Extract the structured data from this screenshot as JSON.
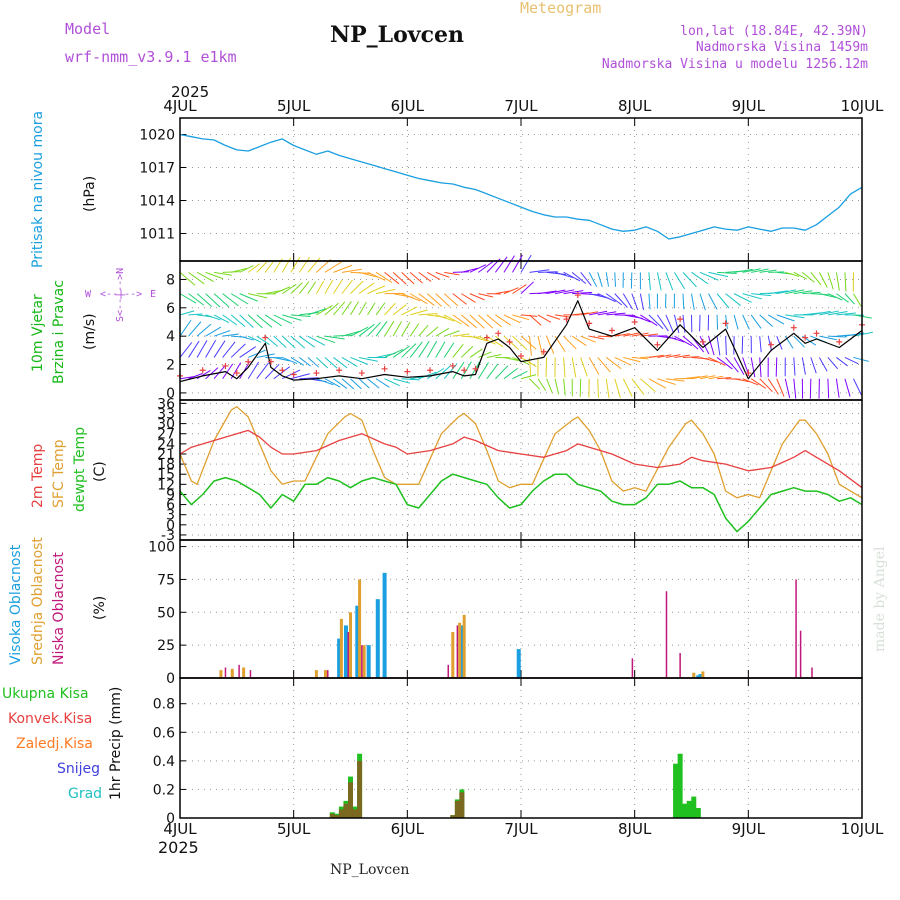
{
  "header": {
    "model_label": "Model",
    "model_name": "wrf-nmm_v3.9.1 e1km",
    "title": "NP_Lovcen",
    "product": "Meteogram",
    "coords": "lon,lat (18.84E, 42.39N)",
    "altitude": "Nadmorska Visina 1459m",
    "model_altitude": "Nadmorska Visina u modelu 1256.12m"
  },
  "footer": {
    "station": "NP_Lovcen",
    "credit": "made by Angel"
  },
  "colors": {
    "pressure": "#1a9fe0",
    "wind_label": "#17b817",
    "temp2m": "#e84040",
    "sfc": "#e0a030",
    "dew": "#20c020",
    "cloud_high": "#1a9fe0",
    "cloud_mid": "#e0a030",
    "cloud_low": "#c0187a",
    "precip_total": "#20c020",
    "precip_conv": "#e84040",
    "precip_strat": "#ff7a20",
    "precip_snow": "#4040e0",
    "precip_hail": "#20c0c0",
    "violet": "#b050d8"
  },
  "time_axis": {
    "year": "2025",
    "day_labels": [
      "4JUL",
      "5JUL",
      "6JUL",
      "7JUL",
      "8JUL",
      "9JUL",
      "10JUL"
    ]
  },
  "wind_legend": {
    "n": "N",
    "s": "S",
    "w": "W",
    "e": "E",
    "arrow": "<--|-->"
  },
  "chart_data": [
    {
      "type": "line",
      "name": "pressure",
      "labels": [
        "Pritisak na nivou mora",
        "(hPa)"
      ],
      "ylim": [
        1008.5,
        1021.5
      ],
      "yticks": [
        "1011",
        "1014",
        "1017",
        "1020"
      ],
      "ytick_values": [
        1011,
        1014,
        1017,
        1020
      ],
      "series": [
        {
          "x": [
            0.0,
            0.1,
            0.2,
            0.3,
            0.4,
            0.5,
            0.6,
            0.7,
            0.8,
            0.9,
            1.0,
            1.1,
            1.2,
            1.3,
            1.4,
            1.5,
            1.6,
            1.7,
            1.8,
            1.9,
            2.0,
            2.1,
            2.2,
            2.3,
            2.4,
            2.5,
            2.6,
            2.7,
            2.8,
            2.9,
            3.0,
            3.1,
            3.2,
            3.3,
            3.4,
            3.5,
            3.6,
            3.7,
            3.8,
            3.9,
            4.0,
            4.1,
            4.2,
            4.3,
            4.4,
            4.5,
            4.6,
            4.7,
            4.8,
            4.9,
            5.0,
            5.1,
            5.2,
            5.3,
            5.4,
            5.5,
            5.6,
            5.7,
            5.8,
            5.9,
            6.0
          ],
          "y": [
            1020.0,
            1019.8,
            1019.6,
            1019.5,
            1019.0,
            1018.6,
            1018.5,
            1018.9,
            1019.3,
            1019.6,
            1019.0,
            1018.6,
            1018.2,
            1018.5,
            1018.1,
            1017.8,
            1017.5,
            1017.2,
            1016.9,
            1016.6,
            1016.3,
            1016.0,
            1015.8,
            1015.6,
            1015.5,
            1015.2,
            1015.0,
            1014.6,
            1014.2,
            1013.8,
            1013.4,
            1013.0,
            1012.7,
            1012.5,
            1012.5,
            1012.3,
            1012.2,
            1011.8,
            1011.4,
            1011.2,
            1011.3,
            1011.6,
            1011.2,
            1010.5,
            1010.7,
            1011.0,
            1011.3,
            1011.6,
            1011.4,
            1011.3,
            1011.6,
            1011.4,
            1011.2,
            1011.5,
            1011.5,
            1011.3,
            1011.8,
            1012.6,
            1013.4,
            1014.6,
            1015.2
          ]
        }
      ]
    },
    {
      "type": "line",
      "name": "wind",
      "labels": [
        "10m Vjetar",
        "Brzina i Pravac",
        "(m/s)"
      ],
      "ylim": [
        -0.5,
        9.3
      ],
      "yticks": [
        "0",
        "2",
        "4",
        "6",
        "8"
      ],
      "ytick_values": [
        0,
        2,
        4,
        6,
        8
      ],
      "series": [
        {
          "name": "speed",
          "x": [
            0.0,
            0.2,
            0.4,
            0.5,
            0.6,
            0.75,
            0.8,
            0.9,
            1.0,
            1.2,
            1.4,
            1.6,
            1.8,
            2.0,
            2.2,
            2.4,
            2.5,
            2.6,
            2.7,
            2.8,
            2.9,
            3.0,
            3.2,
            3.4,
            3.5,
            3.6,
            3.8,
            4.0,
            4.2,
            4.4,
            4.6,
            4.8,
            5.0,
            5.2,
            5.4,
            5.5,
            5.6,
            5.8,
            6.0
          ],
          "y": [
            0.8,
            1.2,
            1.5,
            1.0,
            1.8,
            3.5,
            1.8,
            1.2,
            0.9,
            1.0,
            1.2,
            1.0,
            1.3,
            1.1,
            1.2,
            1.5,
            1.2,
            1.3,
            3.5,
            3.8,
            3.2,
            2.2,
            2.5,
            4.8,
            6.5,
            4.5,
            4.0,
            4.6,
            3.0,
            4.8,
            3.2,
            4.5,
            1.0,
            3.0,
            4.2,
            3.5,
            3.8,
            3.2,
            4.4
          ]
        }
      ]
    },
    {
      "type": "line",
      "name": "temperature",
      "labels": [
        "2m Temp",
        "SFC Temp",
        "dewpt Temp",
        "(C)"
      ],
      "ylim": [
        -4.5,
        37
      ],
      "yticks": [
        "-3",
        "0",
        "3",
        "6",
        "9",
        "12",
        "15",
        "18",
        "21",
        "24",
        "27",
        "30",
        "33",
        "36"
      ],
      "ytick_values": [
        -3,
        0,
        3,
        6,
        9,
        12,
        15,
        18,
        21,
        24,
        27,
        30,
        33,
        36
      ],
      "series": [
        {
          "name": "2m",
          "x": [
            0.0,
            0.1,
            0.3,
            0.5,
            0.6,
            0.7,
            0.8,
            0.9,
            1.0,
            1.2,
            1.4,
            1.5,
            1.6,
            1.8,
            1.9,
            2.0,
            2.2,
            2.4,
            2.5,
            2.6,
            2.8,
            3.0,
            3.2,
            3.4,
            3.5,
            3.6,
            3.8,
            4.0,
            4.2,
            4.4,
            4.5,
            4.6,
            4.8,
            5.0,
            5.2,
            5.4,
            5.5,
            5.6,
            5.8,
            6.0
          ],
          "y": [
            21,
            23,
            25,
            27,
            28,
            26,
            23,
            21,
            21,
            22,
            25,
            26,
            27,
            24,
            23,
            21,
            22,
            24,
            26,
            25,
            22,
            21,
            20,
            22,
            24,
            23,
            21,
            18,
            17,
            18,
            20,
            19,
            18,
            16,
            17,
            20,
            22,
            20,
            16,
            11
          ]
        },
        {
          "name": "sfc",
          "x": [
            0.0,
            0.1,
            0.15,
            0.3,
            0.45,
            0.5,
            0.6,
            0.7,
            0.8,
            0.9,
            1.0,
            1.1,
            1.3,
            1.45,
            1.5,
            1.6,
            1.7,
            1.8,
            1.9,
            2.0,
            2.1,
            2.3,
            2.45,
            2.5,
            2.6,
            2.7,
            2.8,
            2.9,
            3.0,
            3.1,
            3.3,
            3.45,
            3.5,
            3.6,
            3.7,
            3.8,
            3.9,
            4.0,
            4.1,
            4.3,
            4.45,
            4.5,
            4.6,
            4.7,
            4.8,
            4.9,
            5.0,
            5.1,
            5.3,
            5.45,
            5.5,
            5.6,
            5.7,
            5.8,
            5.9,
            6.0
          ],
          "y": [
            21,
            13,
            12,
            25,
            34,
            35,
            32,
            24,
            16,
            12,
            13,
            13,
            27,
            32,
            33,
            31,
            22,
            14,
            12,
            12,
            12,
            27,
            32,
            33,
            30,
            22,
            13,
            11,
            12,
            12,
            27,
            31,
            32,
            28,
            22,
            13,
            10,
            11,
            10,
            23,
            30,
            31,
            27,
            21,
            10,
            8,
            9,
            8,
            24,
            31,
            31,
            27,
            21,
            12,
            10,
            8
          ]
        },
        {
          "name": "dew",
          "x": [
            0.0,
            0.1,
            0.2,
            0.3,
            0.4,
            0.5,
            0.6,
            0.7,
            0.8,
            0.9,
            1.0,
            1.1,
            1.2,
            1.3,
            1.4,
            1.5,
            1.6,
            1.7,
            1.8,
            1.9,
            2.0,
            2.1,
            2.2,
            2.3,
            2.4,
            2.5,
            2.6,
            2.7,
            2.8,
            2.9,
            3.0,
            3.1,
            3.2,
            3.3,
            3.4,
            3.5,
            3.6,
            3.7,
            3.8,
            3.9,
            4.0,
            4.1,
            4.2,
            4.3,
            4.4,
            4.5,
            4.6,
            4.7,
            4.8,
            4.9,
            5.0,
            5.1,
            5.2,
            5.3,
            5.4,
            5.5,
            5.6,
            5.7,
            5.8,
            5.9,
            6.0
          ],
          "y": [
            10,
            6,
            9,
            13,
            14,
            13,
            11,
            9,
            5,
            9,
            7,
            12,
            12,
            14,
            13,
            11,
            13,
            14,
            13,
            12,
            6,
            5,
            9,
            13,
            15,
            14,
            13,
            12,
            8,
            5,
            6,
            10,
            13,
            15,
            15,
            12,
            11,
            10,
            7,
            6,
            6,
            8,
            12,
            12,
            13,
            11,
            11,
            9,
            2,
            -2,
            1,
            5,
            9,
            10,
            11,
            10,
            10,
            9,
            7,
            8,
            6
          ]
        }
      ]
    },
    {
      "type": "bar",
      "name": "clouds",
      "labels": [
        "Visoka Oblacnost",
        "Srednja Oblacnost",
        "Niska Oblacnost",
        "(%)"
      ],
      "ylim": [
        0,
        105
      ],
      "yticks": [
        "0",
        "25",
        "50",
        "75",
        "100"
      ],
      "ytick_values": [
        0,
        25,
        50,
        75,
        100
      ],
      "series": [
        {
          "name": "high",
          "x": [
            1.4,
            1.46,
            1.56,
            1.66,
            1.74,
            1.8,
            2.48,
            2.98,
            4.56,
            4.58
          ],
          "y": [
            30,
            40,
            55,
            25,
            60,
            80,
            40,
            22,
            2,
            3
          ]
        },
        {
          "name": "mid",
          "x": [
            0.36,
            0.46,
            0.56,
            1.2,
            1.28,
            1.42,
            1.5,
            1.58,
            1.62,
            2.4,
            2.46,
            2.5,
            4.52,
            4.6
          ],
          "y": [
            6,
            7,
            8,
            6,
            6,
            45,
            50,
            75,
            25,
            35,
            42,
            48,
            4,
            5
          ]
        },
        {
          "name": "low",
          "x": [
            0.4,
            0.52,
            0.62,
            1.3,
            1.48,
            1.6,
            2.36,
            2.44,
            3.98,
            4.28,
            4.4,
            5.42,
            5.46,
            5.56
          ],
          "y": [
            8,
            10,
            6,
            6,
            35,
            25,
            10,
            40,
            15,
            66,
            19,
            75,
            36,
            8
          ]
        }
      ]
    },
    {
      "type": "bar",
      "name": "precip",
      "labels": [
        "Ukupna Kisa",
        "Konvek.Kisa",
        "Zaledj.Kisa",
        "Snijeg",
        "Grad",
        "1hr Precip (mm)"
      ],
      "ylim": [
        0,
        0.98
      ],
      "yticks": [
        "0",
        "0.2",
        "0.4",
        "0.6",
        "0.8"
      ],
      "ytick_values": [
        0,
        0.2,
        0.4,
        0.6,
        0.8
      ],
      "series": [
        {
          "name": "total",
          "x": [
            1.34,
            1.38,
            1.42,
            1.46,
            1.5,
            1.54,
            1.58,
            2.4,
            2.44,
            2.48,
            4.36,
            4.4,
            4.44,
            4.48,
            4.52,
            4.56
          ],
          "y": [
            0.04,
            0.03,
            0.08,
            0.12,
            0.29,
            0.08,
            0.45,
            0.02,
            0.13,
            0.2,
            0.38,
            0.45,
            0.1,
            0.12,
            0.15,
            0.07
          ]
        },
        {
          "name": "convective",
          "x": [
            1.34,
            1.38,
            1.42,
            1.46,
            1.5,
            1.54,
            1.58,
            2.4,
            2.44,
            2.48
          ],
          "y": [
            0.03,
            0.02,
            0.06,
            0.1,
            0.25,
            0.06,
            0.4,
            0.02,
            0.12,
            0.18
          ]
        }
      ]
    }
  ]
}
